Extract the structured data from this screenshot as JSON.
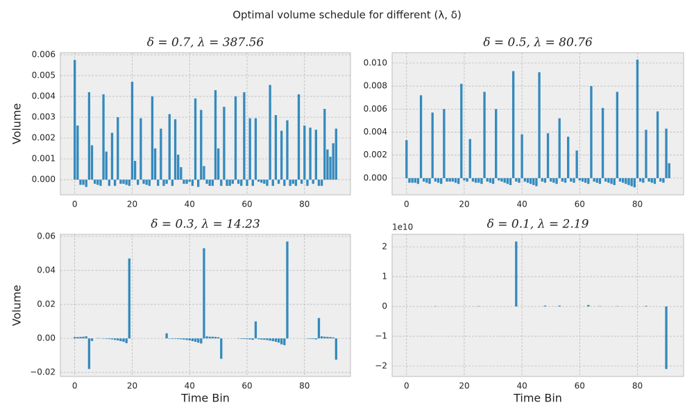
{
  "figure": {
    "title": "Optimal volume schedule for different (λ, δ)"
  },
  "chart_data": [
    {
      "type": "bar",
      "title": "δ = 0.7, λ = 387.56",
      "ylabel": "Volume",
      "color": "#348ABD",
      "grid": true,
      "x": [
        0,
        1,
        2,
        3,
        4,
        5,
        6,
        7,
        8,
        9,
        10,
        11,
        12,
        13,
        14,
        15,
        16,
        17,
        18,
        19,
        20,
        21,
        22,
        23,
        24,
        25,
        26,
        27,
        28,
        29,
        30,
        31,
        32,
        33,
        34,
        35,
        36,
        37,
        38,
        39,
        40,
        41,
        42,
        43,
        44,
        45,
        46,
        47,
        48,
        49,
        50,
        51,
        52,
        53,
        54,
        55,
        56,
        57,
        58,
        59,
        60,
        61,
        62,
        63,
        64,
        65,
        66,
        67,
        68,
        69,
        70,
        71,
        72,
        73,
        74,
        75,
        76,
        77,
        78,
        79,
        80,
        81,
        82,
        83,
        84,
        85,
        86,
        87,
        88,
        89,
        90,
        91
      ],
      "values": [
        0.00575,
        0.0026,
        -0.00025,
        -0.00025,
        -0.00035,
        0.0042,
        0.00165,
        -0.0002,
        -0.00025,
        -0.0003,
        0.0041,
        0.00135,
        -0.0003,
        0.00225,
        -0.0003,
        0.003,
        -0.0002,
        -0.0002,
        -0.00025,
        -0.0003,
        0.0047,
        0.0009,
        -0.00025,
        0.00295,
        -0.0002,
        -0.00025,
        -0.0003,
        0.004,
        0.0015,
        -0.0003,
        0.00245,
        -0.0003,
        -0.0002,
        0.00315,
        -0.0003,
        0.0029,
        0.0012,
        0.0006,
        -0.0002,
        -0.0002,
        -0.0001,
        -0.0003,
        0.0039,
        -0.00035,
        0.00335,
        0.00065,
        -0.0002,
        -0.0003,
        -0.0003,
        0.0043,
        0.0015,
        -0.0003,
        0.0035,
        -0.0003,
        -0.0003,
        -0.0002,
        0.004,
        -0.0002,
        -0.0003,
        0.0042,
        -0.0003,
        0.00295,
        -0.0003,
        0.00295,
        -0.0001,
        -0.00015,
        -0.0002,
        -0.0003,
        0.00455,
        -0.0003,
        0.0031,
        -0.0002,
        0.00235,
        -0.0003,
        0.00285,
        -0.0003,
        -0.0002,
        -0.0003,
        0.0041,
        -0.0002,
        0.0026,
        -0.0003,
        0.0025,
        -0.0002,
        0.0024,
        -0.0003,
        -0.0003,
        0.0034,
        0.00145,
        0.0011,
        0.00175,
        0.00245
      ],
      "xlim": [
        -5,
        96
      ],
      "xticks": [
        0,
        20,
        40,
        60,
        80
      ],
      "ylim": [
        -0.00073,
        0.0061
      ],
      "yticks": [
        {
          "value": 0,
          "label": "0.000"
        },
        {
          "value": 0.001,
          "label": "0.001"
        },
        {
          "value": 0.002,
          "label": "0.002"
        },
        {
          "value": 0.003,
          "label": "0.003"
        },
        {
          "value": 0.004,
          "label": "0.004"
        },
        {
          "value": 0.005,
          "label": "0.005"
        },
        {
          "value": 0.006,
          "label": "0.006"
        }
      ]
    },
    {
      "type": "bar",
      "title": "δ = 0.5, λ = 80.76",
      "color": "#348ABD",
      "grid": true,
      "x": [
        0,
        1,
        2,
        3,
        4,
        5,
        6,
        7,
        8,
        9,
        10,
        11,
        12,
        13,
        14,
        15,
        16,
        17,
        18,
        19,
        20,
        21,
        22,
        23,
        24,
        25,
        26,
        27,
        28,
        29,
        30,
        31,
        32,
        33,
        34,
        35,
        36,
        37,
        38,
        39,
        40,
        41,
        42,
        43,
        44,
        45,
        46,
        47,
        48,
        49,
        50,
        51,
        52,
        53,
        54,
        55,
        56,
        57,
        58,
        59,
        60,
        61,
        62,
        63,
        64,
        65,
        66,
        67,
        68,
        69,
        70,
        71,
        72,
        73,
        74,
        75,
        76,
        77,
        78,
        79,
        80,
        81,
        82,
        83,
        84,
        85,
        86,
        87,
        88,
        89,
        90,
        91
      ],
      "values": [
        0.0033,
        -0.0004,
        -0.0004,
        -0.0004,
        -0.0005,
        0.0072,
        -0.0003,
        -0.0004,
        -0.0005,
        0.0057,
        -0.0003,
        -0.0004,
        -0.0005,
        0.006,
        -0.0003,
        -0.0003,
        -0.0003,
        -0.0004,
        -0.0005,
        0.0082,
        -0.0002,
        -0.0003,
        0.0034,
        -0.0003,
        -0.0004,
        -0.0004,
        -0.0005,
        0.0075,
        -0.0003,
        -0.0004,
        -0.0005,
        0.006,
        -0.0002,
        -0.0003,
        -0.0004,
        -0.0005,
        -0.0006,
        0.0093,
        -0.0003,
        -0.0004,
        0.0038,
        -0.0003,
        -0.0004,
        -0.0005,
        -0.0006,
        -0.0007,
        0.0092,
        -0.0003,
        -0.0004,
        0.0039,
        -0.0003,
        -0.0004,
        -0.0005,
        0.0052,
        -0.0003,
        -0.0004,
        0.0036,
        -0.0003,
        -0.0004,
        0.0024,
        -0.0002,
        -0.0003,
        -0.0004,
        -0.0005,
        0.008,
        -0.0003,
        -0.0004,
        -0.0005,
        0.0061,
        -0.0003,
        -0.0004,
        -0.0005,
        -0.0006,
        0.0075,
        -0.0003,
        -0.0004,
        -0.0005,
        -0.0006,
        -0.0007,
        -0.0008,
        0.0103,
        -0.0003,
        -0.0004,
        0.0042,
        -0.0003,
        -0.0004,
        -0.0005,
        0.0058,
        -0.0003,
        -0.0004,
        0.0043,
        0.0013
      ],
      "xlim": [
        -5,
        96
      ],
      "xticks": [
        0,
        20,
        40,
        60,
        80
      ],
      "ylim": [
        -0.00145,
        0.0109
      ],
      "yticks": [
        {
          "value": 0,
          "label": "0.000"
        },
        {
          "value": 0.002,
          "label": "0.002"
        },
        {
          "value": 0.004,
          "label": "0.004"
        },
        {
          "value": 0.006,
          "label": "0.006"
        },
        {
          "value": 0.008,
          "label": "0.008"
        },
        {
          "value": 0.01,
          "label": "0.010"
        }
      ]
    },
    {
      "type": "bar",
      "title": "δ = 0.3, λ = 14.23",
      "ylabel": "Volume",
      "xlabel": "Time Bin",
      "color": "#348ABD",
      "grid": true,
      "x": [
        0,
        1,
        2,
        3,
        4,
        5,
        6,
        7,
        8,
        9,
        10,
        11,
        12,
        13,
        14,
        15,
        16,
        17,
        18,
        19,
        20,
        21,
        22,
        23,
        24,
        25,
        26,
        27,
        28,
        29,
        30,
        31,
        32,
        33,
        34,
        35,
        36,
        37,
        38,
        39,
        40,
        41,
        42,
        43,
        44,
        45,
        46,
        47,
        48,
        49,
        50,
        51,
        52,
        53,
        54,
        55,
        56,
        57,
        58,
        59,
        60,
        61,
        62,
        63,
        64,
        65,
        66,
        67,
        68,
        69,
        70,
        71,
        72,
        73,
        74,
        75,
        76,
        77,
        78,
        79,
        80,
        81,
        82,
        83,
        84,
        85,
        86,
        87,
        88,
        89,
        90,
        91
      ],
      "values": [
        0.0008,
        0.0008,
        0.0009,
        0.001,
        0.0012,
        -0.018,
        -0.0015,
        0,
        0.0002,
        0.0001,
        -0.0002,
        -0.0003,
        -0.0004,
        -0.0006,
        -0.0009,
        -0.0012,
        -0.0016,
        -0.002,
        -0.0028,
        0.047,
        0,
        0,
        0,
        0,
        0,
        0,
        0,
        0,
        0,
        0,
        0,
        0,
        0.003,
        -0.0002,
        -0.0003,
        -0.0003,
        -0.0004,
        -0.0005,
        -0.0007,
        -0.0009,
        -0.0012,
        -0.0016,
        -0.002,
        -0.0025,
        -0.003,
        0.053,
        0.0012,
        0.001,
        0.001,
        0.0009,
        0.0007,
        -0.012,
        0,
        0,
        0,
        0,
        0,
        -0.0002,
        -0.0003,
        -0.0004,
        -0.0004,
        -0.0006,
        -0.0008,
        0.01,
        -0.0005,
        -0.0007,
        -0.0008,
        -0.001,
        -0.0013,
        -0.0016,
        -0.002,
        -0.0025,
        -0.0035,
        -0.004,
        0.057,
        0,
        0,
        0,
        0,
        0,
        0,
        -0.0002,
        -0.0003,
        -0.0004,
        -0.0006,
        0.012,
        0.0012,
        0.001,
        0.0009,
        0.0008,
        0.0006,
        -0.0125
      ],
      "xlim": [
        -5,
        96
      ],
      "xticks": [
        0,
        20,
        40,
        60,
        80
      ],
      "ylim": [
        -0.0224,
        0.0612
      ],
      "yticks": [
        {
          "value": -0.02,
          "label": "−0.02"
        },
        {
          "value": 0,
          "label": "0.00"
        },
        {
          "value": 0.02,
          "label": "0.02"
        },
        {
          "value": 0.04,
          "label": "0.04"
        },
        {
          "value": 0.06,
          "label": "0.06"
        }
      ]
    },
    {
      "type": "bar",
      "title": "δ = 0.1, λ = 2.19",
      "xlabel": "Time Bin",
      "offset_text": "1e10",
      "color": "#348ABD",
      "grid": true,
      "x": [
        0,
        1,
        2,
        3,
        4,
        5,
        6,
        7,
        8,
        9,
        10,
        11,
        12,
        13,
        14,
        15,
        16,
        17,
        18,
        19,
        20,
        21,
        22,
        23,
        24,
        25,
        26,
        27,
        28,
        29,
        30,
        31,
        32,
        33,
        34,
        35,
        36,
        37,
        38,
        39,
        40,
        41,
        42,
        43,
        44,
        45,
        46,
        47,
        48,
        49,
        50,
        51,
        52,
        53,
        54,
        55,
        56,
        57,
        58,
        59,
        60,
        61,
        62,
        63,
        64,
        65,
        66,
        67,
        68,
        69,
        70,
        71,
        72,
        73,
        74,
        75,
        76,
        77,
        78,
        79,
        80,
        81,
        82,
        83,
        84,
        85,
        86,
        87,
        88,
        89,
        90,
        91
      ],
      "values": [
        0,
        0,
        0,
        0,
        0,
        0,
        0,
        0,
        0,
        0,
        100000000,
        0,
        0,
        0,
        0,
        0,
        0,
        0,
        0,
        0,
        0,
        0,
        0,
        0,
        0,
        100000000,
        0,
        0,
        0,
        0,
        0,
        0,
        0,
        0,
        0,
        0,
        0,
        0,
        21800000000,
        0,
        0,
        0,
        0,
        0,
        0,
        0,
        0,
        0,
        300000000,
        0,
        0,
        0,
        0,
        300000000,
        0,
        0,
        0,
        0,
        0,
        0,
        0,
        0,
        0,
        500000000,
        0,
        0,
        0,
        100000000,
        0,
        0,
        0,
        0,
        0,
        100000000,
        0,
        0,
        0,
        0,
        0,
        0,
        0,
        0,
        0,
        200000000,
        0,
        0,
        0,
        0,
        0,
        0,
        -21000000000,
        0
      ],
      "xlim": [
        -5,
        96
      ],
      "xticks": [
        0,
        20,
        40,
        60,
        80
      ],
      "ylim": [
        -23500000000,
        24200000000
      ],
      "yticks": [
        {
          "value": -20000000000,
          "label": "−2"
        },
        {
          "value": -10000000000,
          "label": "−1"
        },
        0,
        {
          "value": 10000000000,
          "label": "1"
        },
        {
          "value": 20000000000,
          "label": "2"
        }
      ]
    }
  ]
}
